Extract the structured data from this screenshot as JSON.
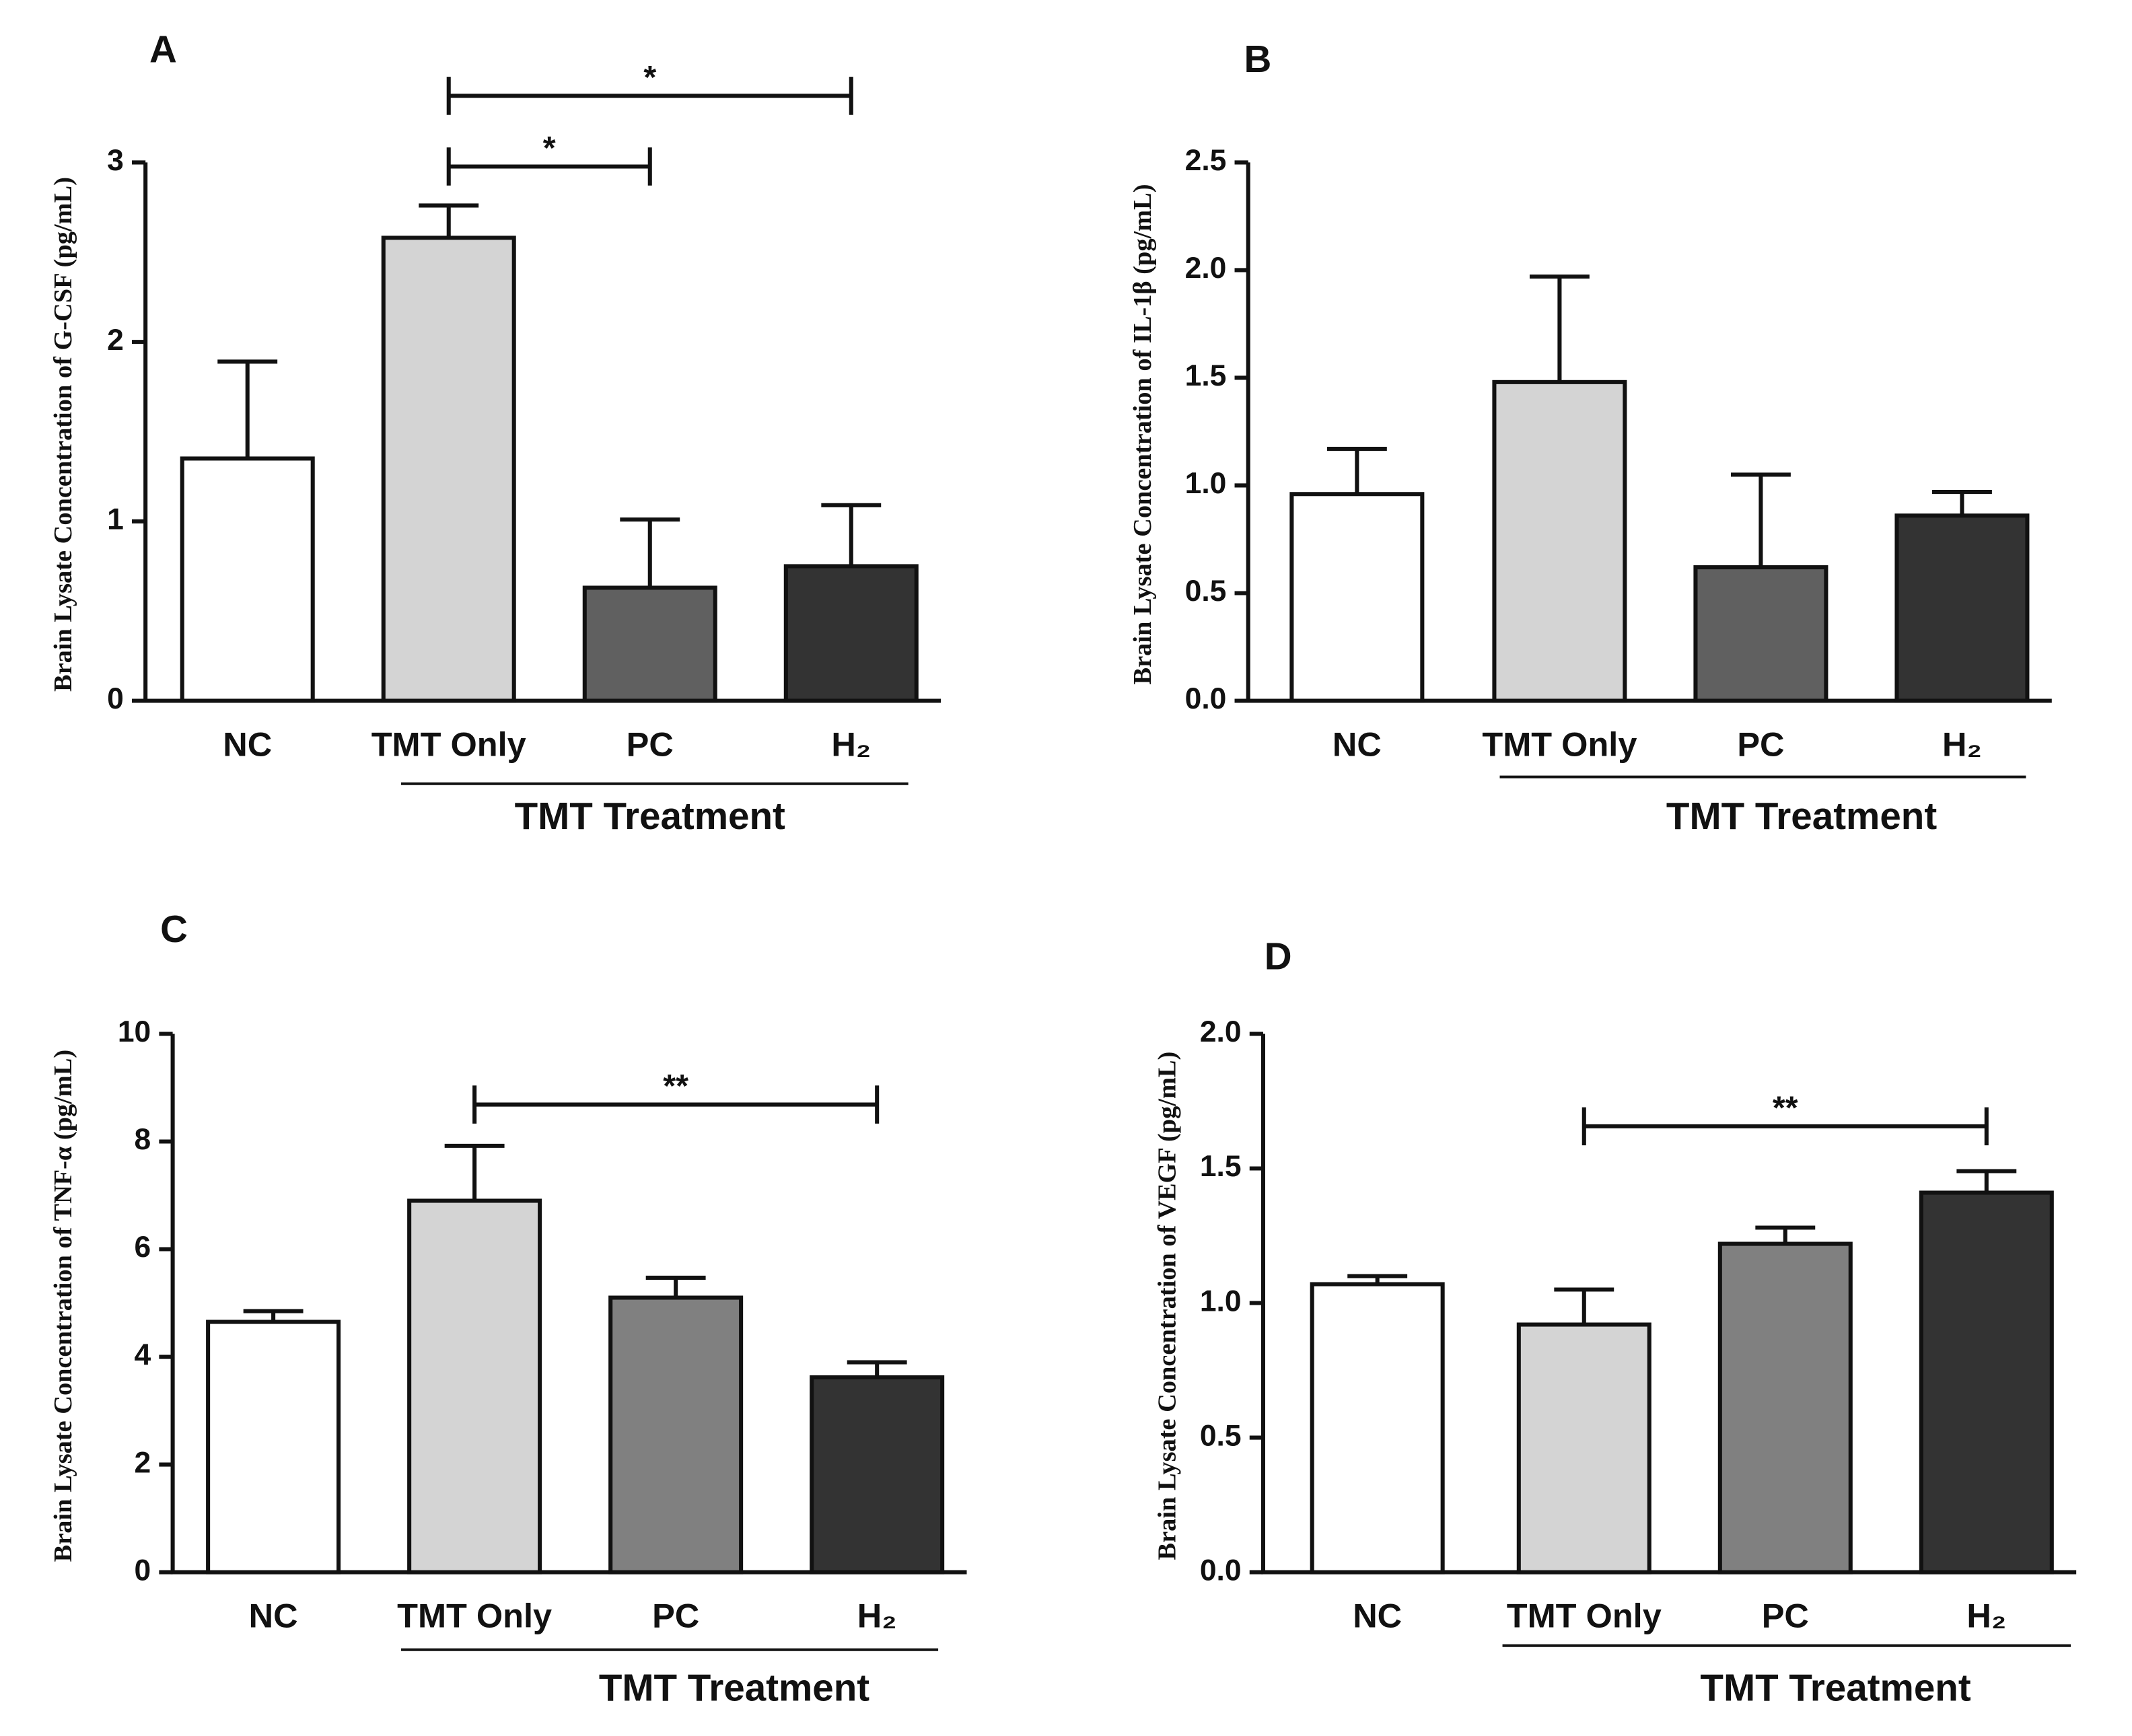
{
  "chart_data": [
    {
      "type": "bar",
      "panel": "A",
      "ylabel": "Brain Lysate Concentration of G-CSF (pg/mL)",
      "categories": [
        "NC",
        "TMT Only",
        "PC",
        "H₂"
      ],
      "values": [
        1.35,
        2.58,
        0.63,
        0.75
      ],
      "errors": [
        0.54,
        0.18,
        0.38,
        0.34
      ],
      "colors": [
        "#ffffff",
        "#d4d4d4",
        "#606060",
        "#333333"
      ],
      "ylim": [
        0,
        3
      ],
      "yticks": [
        0,
        1,
        2,
        3
      ],
      "group_label": "TMT Treatment",
      "annotations": [
        "*",
        "*"
      ]
    },
    {
      "type": "bar",
      "panel": "B",
      "ylabel": "Brain Lysate Concentration of IL-1β (pg/mL)",
      "categories": [
        "NC",
        "TMT Only",
        "PC",
        "H₂"
      ],
      "values": [
        0.96,
        1.48,
        0.62,
        0.86
      ],
      "errors": [
        0.21,
        0.49,
        0.43,
        0.11
      ],
      "colors": [
        "#ffffff",
        "#d4d4d4",
        "#606060",
        "#333333"
      ],
      "ylim": [
        0,
        2.5
      ],
      "yticks": [
        {
          "value": 0,
          "label": "0.0"
        },
        0.5,
        {
          "value": 1,
          "label": "1.0"
        },
        1.5,
        {
          "value": 2,
          "label": "2.0"
        },
        2.5
      ],
      "group_label": "TMT Treatment",
      "annotations": []
    },
    {
      "type": "bar",
      "panel": "C",
      "ylabel": "Brain Lysate Concentration of TNF-α (pg/mL)",
      "categories": [
        "NC",
        "TMT Only",
        "PC",
        "H₂"
      ],
      "values": [
        4.65,
        6.9,
        5.1,
        3.62
      ],
      "errors": [
        0.2,
        1.02,
        0.37,
        0.28
      ],
      "colors": [
        "#ffffff",
        "#d4d4d4",
        "#808080",
        "#333333"
      ],
      "ylim": [
        0,
        10
      ],
      "yticks": [
        0,
        2,
        4,
        6,
        8,
        10
      ],
      "group_label": "TMT Treatment",
      "annotations": [
        "**"
      ]
    },
    {
      "type": "bar",
      "panel": "D",
      "ylabel": "Brain Lysate Concentration of VEGF (pg/mL)",
      "categories": [
        "NC",
        "TMT Only",
        "PC",
        "H₂"
      ],
      "values": [
        1.07,
        0.92,
        1.22,
        1.41
      ],
      "errors": [
        0.03,
        0.13,
        0.06,
        0.08
      ],
      "colors": [
        "#ffffff",
        "#d4d4d4",
        "#808080",
        "#333333"
      ],
      "ylim": [
        0,
        2
      ],
      "yticks": [
        {
          "value": 0,
          "label": "0.0"
        },
        0.5,
        {
          "value": 1,
          "label": "1.0"
        },
        1.5,
        {
          "value": 2,
          "label": "2.0"
        }
      ],
      "group_label": "TMT Treatment",
      "annotations": [
        "**"
      ]
    }
  ]
}
